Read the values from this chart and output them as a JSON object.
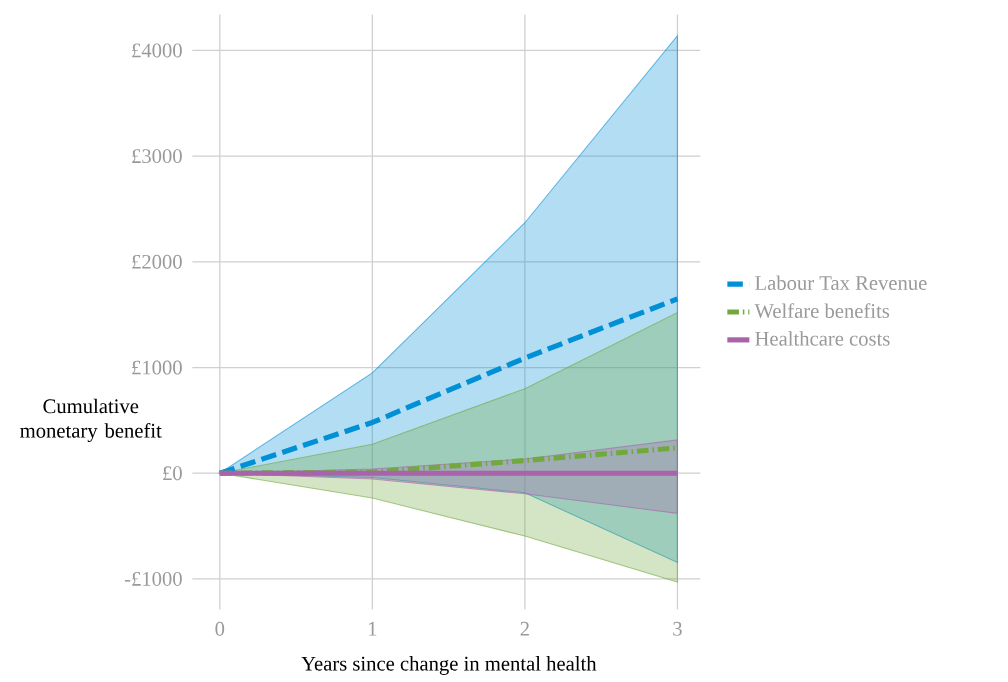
{
  "chart_data": {
    "type": "line",
    "xlabel": "Years since change in mental health",
    "ylabel": "Cumulative monetary benefit",
    "x": [
      0,
      1,
      2,
      3
    ],
    "series": [
      {
        "name": "Labour Tax Revenue",
        "color": "#0090d6",
        "line_style": "dashed",
        "values": [
          0,
          480,
          1090,
          1650
        ],
        "lower": [
          0,
          -40,
          -185,
          -845
        ],
        "upper": [
          0,
          950,
          2370,
          4140
        ]
      },
      {
        "name": "Welfare benefits",
        "color": "#72a93f",
        "line_style": "dashdot",
        "values": [
          0,
          10,
          120,
          240
        ],
        "lower": [
          0,
          -235,
          -595,
          -1030
        ],
        "upper": [
          0,
          275,
          800,
          1520
        ]
      },
      {
        "name": "Healthcare costs",
        "color": "#a863aa",
        "line_style": "solid",
        "values": [
          0,
          0,
          0,
          0
        ],
        "lower": [
          0,
          -55,
          -195,
          -380
        ],
        "upper": [
          0,
          40,
          135,
          315
        ]
      }
    ],
    "xlim": [
      -0.18,
      3.15
    ],
    "ylim": [
      -1290,
      4340
    ],
    "xticks": [
      0,
      1,
      2,
      3
    ],
    "yticks": [
      {
        "value": -1000,
        "label": "-£1000"
      },
      {
        "value": 0,
        "label": "£0"
      },
      {
        "value": 1000,
        "label": "£1000"
      },
      {
        "value": 2000,
        "label": "£2000"
      },
      {
        "value": 3000,
        "label": "£3000"
      },
      {
        "value": 4000,
        "label": "£4000"
      }
    ],
    "grid": true,
    "legend": "right"
  }
}
